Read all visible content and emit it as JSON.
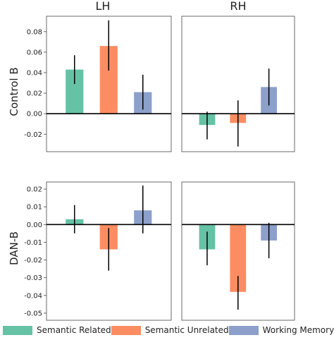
{
  "colors": {
    "c1": "#66c2a5",
    "c2": "#fc8d62",
    "c3": "#8da0cb"
  },
  "columns": [
    "LH",
    "RH"
  ],
  "rows": [
    "Control B",
    "DAN-B"
  ],
  "legend": {
    "items": [
      {
        "label": "Semantic Related",
        "color": "#66c2a5"
      },
      {
        "label": "Semantic Unrelated",
        "color": "#fc8d62"
      },
      {
        "label": "Working Memory",
        "color": "#8da0cb"
      }
    ]
  },
  "chart_data": [
    {
      "type": "bar",
      "row": "Control B",
      "column": "LH",
      "categories": [
        "Semantic Related",
        "Semantic Unrelated",
        "Working Memory"
      ],
      "values": [
        0.043,
        0.066,
        0.021
      ],
      "error_low": [
        0.029,
        0.042,
        0.004
      ],
      "error_high": [
        0.057,
        0.091,
        0.038
      ],
      "ylim": [
        -0.037,
        0.095
      ],
      "yticks": [
        -0.02,
        0.0,
        0.02,
        0.04,
        0.06,
        0.08
      ],
      "ytick_labels": [
        "-0.02",
        "0.00",
        "0.02",
        "0.04",
        "0.06",
        "0.08"
      ]
    },
    {
      "type": "bar",
      "row": "Control B",
      "column": "RH",
      "categories": [
        "Semantic Related",
        "Semantic Unrelated",
        "Working Memory"
      ],
      "values": [
        -0.011,
        -0.009,
        0.026
      ],
      "error_low": [
        -0.025,
        -0.032,
        0.008
      ],
      "error_high": [
        0.002,
        0.013,
        0.044
      ],
      "ylim": [
        -0.037,
        0.095
      ]
    },
    {
      "type": "bar",
      "row": "DAN-B",
      "column": "LH",
      "categories": [
        "Semantic Related",
        "Semantic Unrelated",
        "Working Memory"
      ],
      "values": [
        0.003,
        -0.014,
        0.008
      ],
      "error_low": [
        -0.005,
        -0.026,
        -0.005
      ],
      "error_high": [
        0.011,
        -0.002,
        0.022
      ],
      "ylim": [
        -0.054,
        0.024
      ],
      "yticks": [
        -0.05,
        -0.04,
        -0.03,
        -0.02,
        -0.01,
        0.0,
        0.01,
        0.02
      ],
      "ytick_labels": [
        "-0.05",
        "-0.04",
        "-0.03",
        "-0.02",
        "-0.01",
        "0.00",
        "0.01",
        "0.02"
      ]
    },
    {
      "type": "bar",
      "row": "DAN-B",
      "column": "RH",
      "categories": [
        "Semantic Related",
        "Semantic Unrelated",
        "Working Memory"
      ],
      "values": [
        -0.014,
        -0.038,
        -0.009
      ],
      "error_low": [
        -0.023,
        -0.048,
        -0.019
      ],
      "error_high": [
        -0.004,
        -0.029,
        0.001
      ],
      "ylim": [
        -0.054,
        0.024
      ]
    }
  ]
}
